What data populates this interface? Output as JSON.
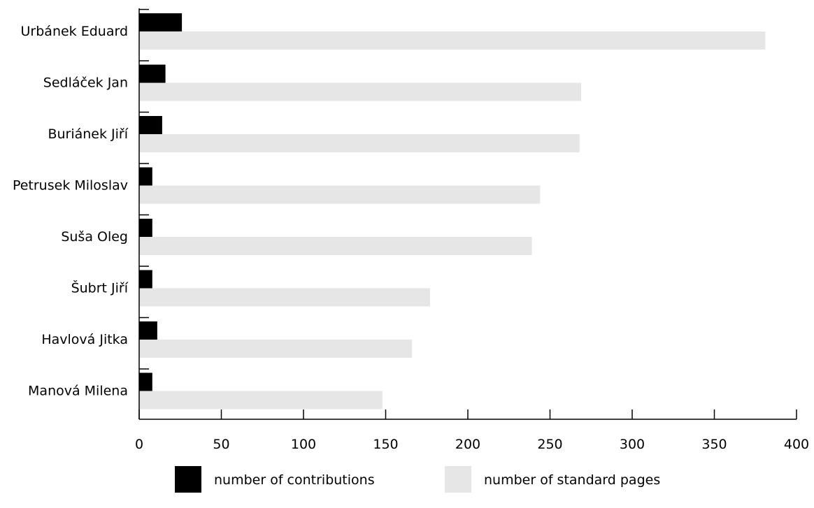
{
  "chart_data": {
    "type": "bar",
    "orientation": "horizontal",
    "categories": [
      "Urbánek Eduard",
      "Sedláček Jan",
      "Buriánek Jiří",
      "Petrusek Miloslav",
      "Suša Oleg",
      "Šubrt Jiří",
      "Havlová Jitka",
      "Manová Milena"
    ],
    "series": [
      {
        "name": "number of contributions",
        "color": "#000000",
        "values": [
          26,
          16,
          14,
          8,
          8,
          8,
          11,
          8
        ]
      },
      {
        "name": "number of standard pages",
        "color": "#e6e6e6",
        "values": [
          381,
          269,
          268,
          244,
          239,
          177,
          166,
          148
        ]
      }
    ],
    "x_ticks": [
      "0",
      "50",
      "100",
      "150",
      "200",
      "250",
      "300",
      "350",
      "400"
    ],
    "xlim": [
      0,
      400
    ],
    "grid": false,
    "legend_position": "bottom"
  }
}
